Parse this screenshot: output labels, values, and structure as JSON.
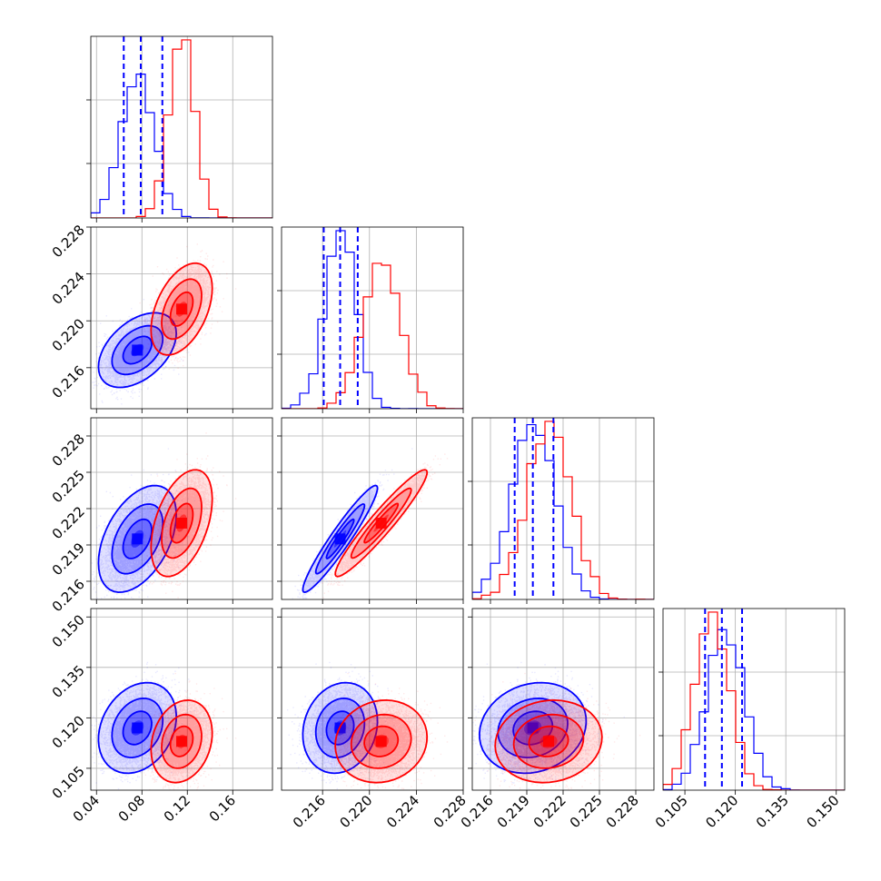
{
  "chart_data": {
    "type": "corner",
    "title": "",
    "grid": true,
    "colors": {
      "blue": "#0000ff",
      "red": "#ff0000"
    },
    "series": [
      {
        "color": "#0000ff",
        "mean": [
          0.076,
          0.2175,
          0.2195,
          0.117
        ],
        "sd": [
          0.014,
          0.0013,
          0.0018,
          0.0055
        ],
        "corr": [
          [
            1,
            0.45,
            0.45,
            0.25
          ],
          [
            0.45,
            1,
            0.95,
            0.15
          ],
          [
            0.45,
            0.95,
            1,
            0.15
          ],
          [
            0.25,
            0.15,
            0.15,
            1
          ]
        ],
        "quantiles": [
          [
            0.064,
            0.079,
            0.098
          ],
          [
            0.2161,
            0.2175,
            0.219
          ],
          [
            0.218,
            0.2195,
            0.2212
          ],
          [
            0.111,
            0.116,
            0.122
          ]
        ]
      },
      {
        "color": "#ff0000",
        "mean": [
          0.115,
          0.221,
          0.2208,
          0.113
        ],
        "sd": [
          0.011,
          0.0016,
          0.0018,
          0.005
        ],
        "corr": [
          [
            1,
            0.45,
            0.45,
            0.2
          ],
          [
            0.45,
            1,
            0.95,
            0.1
          ],
          [
            0.45,
            0.95,
            1,
            0.1
          ],
          [
            0.2,
            0.1,
            0.1,
            1
          ]
        ]
      }
    ],
    "variables": [
      {
        "range": [
          0.035,
          0.195
        ],
        "ticks": [
          "0.04",
          "0.08",
          "0.12",
          "0.16"
        ]
      },
      {
        "range": [
          0.2125,
          0.228
        ],
        "ticks": [
          "0.216",
          "0.220",
          "0.224",
          "0.228"
        ]
      },
      {
        "range": [
          0.2145,
          0.2295
        ],
        "ticks": [
          "0.216",
          "0.219",
          "0.222",
          "0.225",
          "0.228"
        ]
      },
      {
        "range": [
          0.0985,
          0.1525
        ],
        "ticks": [
          "0.105",
          "0.120",
          "0.135",
          "0.150"
        ]
      }
    ]
  }
}
